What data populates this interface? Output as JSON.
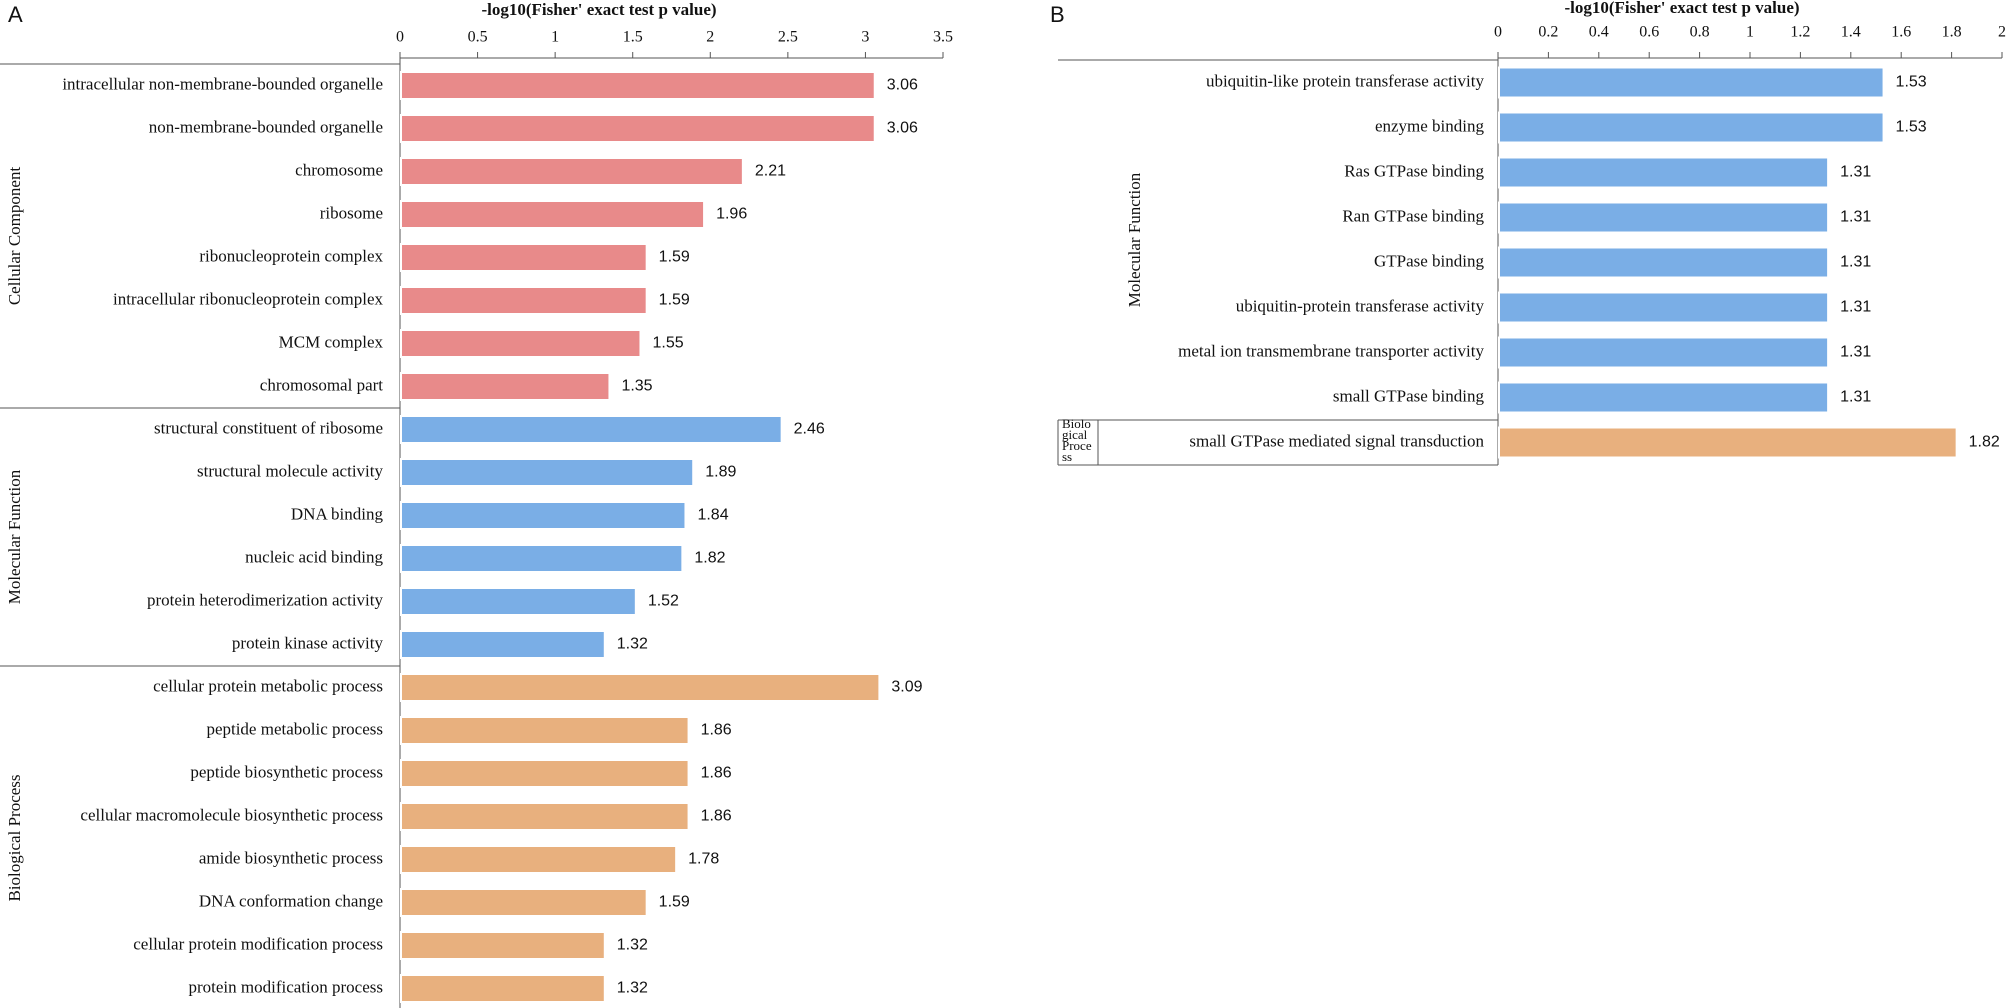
{
  "chart_data": [
    {
      "type": "bar",
      "orientation": "horizontal",
      "panel_label": "A",
      "title": "-log10(Fisher' exact test p value)",
      "xlim": [
        0,
        3.5
      ],
      "ticks": [
        0,
        0.5,
        1,
        1.5,
        2,
        2.5,
        3,
        3.5
      ],
      "tick_labels": [
        "0",
        "0.5",
        "1",
        "1.5",
        "2",
        "2.5",
        "3",
        "3.5"
      ],
      "groups": [
        {
          "name": "Cellular Component",
          "color": "#E88A8A",
          "categories": [
            "intracellular non-membrane-bounded organelle",
            "non-membrane-bounded organelle",
            "chromosome",
            "ribosome",
            "ribonucleoprotein complex",
            "intracellular ribonucleoprotein complex",
            "MCM complex",
            "chromosomal part"
          ],
          "values": [
            3.06,
            3.06,
            2.21,
            1.96,
            1.59,
            1.59,
            1.55,
            1.35
          ],
          "value_labels": [
            "3.06",
            "3.06",
            "2.21",
            "1.96",
            "1.59",
            "1.59",
            "1.55",
            "1.35"
          ]
        },
        {
          "name": "Molecular Function",
          "color": "#7AAEE6",
          "categories": [
            "structural constituent of ribosome",
            "structural molecule activity",
            "DNA binding",
            "nucleic acid binding",
            "protein heterodimerization activity",
            "protein kinase activity"
          ],
          "values": [
            2.46,
            1.89,
            1.84,
            1.82,
            1.52,
            1.32
          ],
          "value_labels": [
            "2.46",
            "1.89",
            "1.84",
            "1.82",
            "1.52",
            "1.32"
          ]
        },
        {
          "name": "Biological Process",
          "color": "#E8B07E",
          "categories": [
            "cellular protein metabolic process",
            "peptide metabolic process",
            "peptide biosynthetic process",
            "cellular macromolecule biosynthetic process",
            "amide biosynthetic process",
            "DNA conformation change",
            "cellular protein modification process",
            "protein modification process"
          ],
          "values": [
            3.09,
            1.86,
            1.86,
            1.86,
            1.78,
            1.59,
            1.32,
            1.32
          ],
          "value_labels": [
            "3.09",
            "1.86",
            "1.86",
            "1.86",
            "1.78",
            "1.59",
            "1.32",
            "1.32"
          ]
        }
      ]
    },
    {
      "type": "bar",
      "orientation": "horizontal",
      "panel_label": "B",
      "title": "-log10(Fisher' exact test p value)",
      "xlim": [
        0,
        2
      ],
      "ticks": [
        0,
        0.2,
        0.4,
        0.6,
        0.8,
        1,
        1.2,
        1.4,
        1.6,
        1.8,
        2
      ],
      "tick_labels": [
        "0",
        "0.2",
        "0.4",
        "0.6",
        "0.8",
        "1",
        "1.2",
        "1.4",
        "1.6",
        "1.8",
        "2"
      ],
      "groups": [
        {
          "name": "Molecular Function",
          "color": "#7AAEE6",
          "categories": [
            "ubiquitin-like protein transferase activity",
            "enzyme binding",
            "Ras GTPase binding",
            "Ran GTPase binding",
            "GTPase binding",
            "ubiquitin-protein transferase activity",
            "metal ion transmembrane transporter activity",
            "small GTPase binding"
          ],
          "values": [
            1.53,
            1.53,
            1.31,
            1.31,
            1.31,
            1.31,
            1.31,
            1.31
          ],
          "value_labels": [
            "1.53",
            "1.53",
            "1.31",
            "1.31",
            "1.31",
            "1.31",
            "1.31",
            "1.31"
          ]
        },
        {
          "name": "Biolo gical Proce ss",
          "name_lines": [
            "Biolo",
            "gical",
            "Proce",
            "ss"
          ],
          "color": "#E8B07E",
          "categories": [
            "small GTPase mediated signal transduction"
          ],
          "values": [
            1.82
          ],
          "value_labels": [
            "1.82"
          ]
        }
      ]
    }
  ]
}
